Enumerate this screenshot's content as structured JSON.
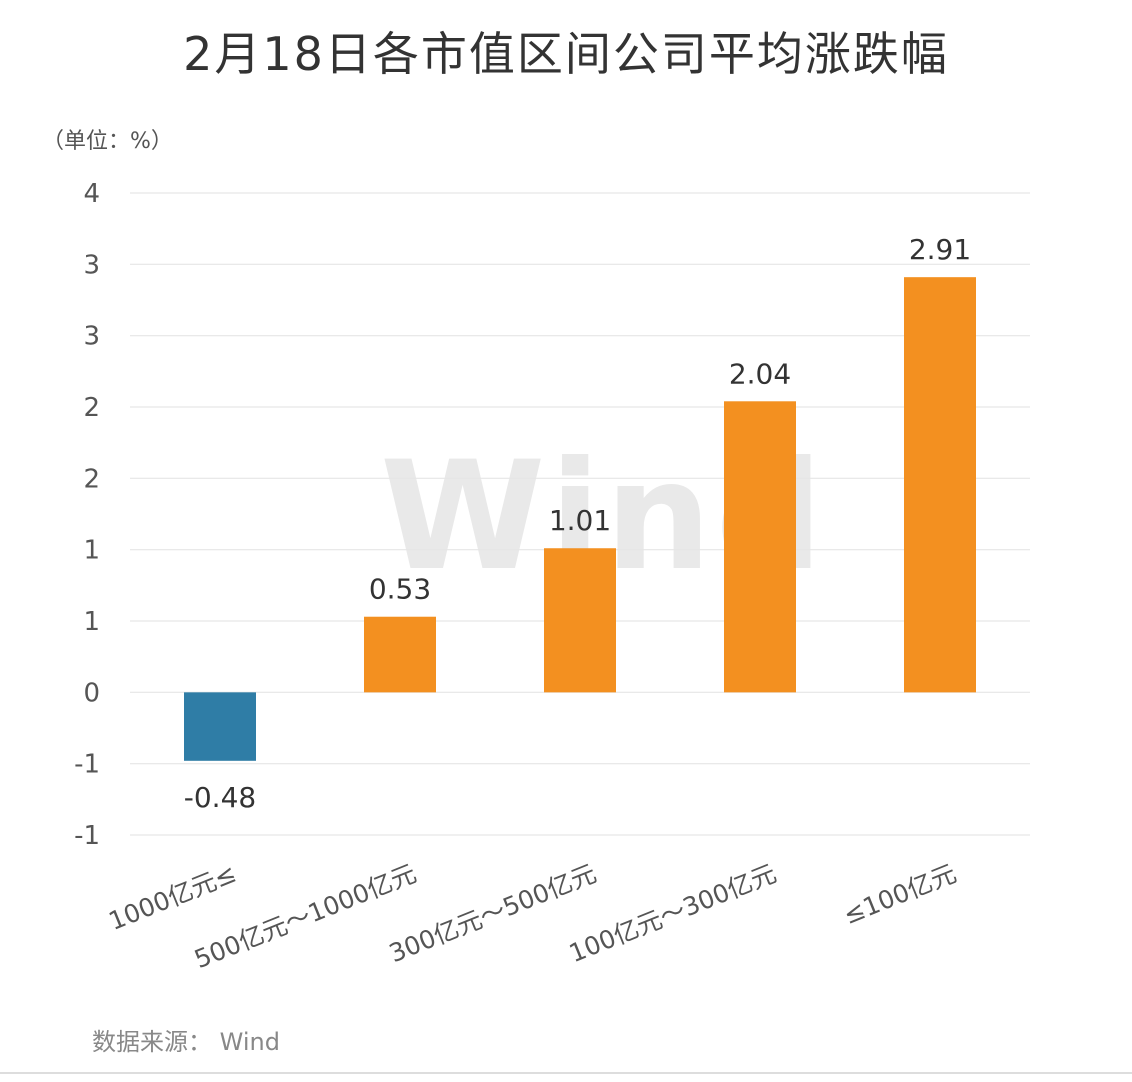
{
  "title": "2月18日各市值区间公司平均涨跌幅",
  "unit_label": "（单位：%）",
  "source": "数据来源： Wind",
  "watermark": "Wind",
  "colors": {
    "positive": "#f39020",
    "negative": "#2f7da6",
    "grid": "#e6e6e6",
    "text": "#333333",
    "axis_text": "#555555"
  },
  "chart_data": {
    "type": "bar",
    "categories": [
      "1000亿元≤",
      "500亿元～1000亿元",
      "300亿元～500亿元",
      "100亿元～300亿元",
      "≤100亿元"
    ],
    "values": [
      -0.48,
      0.53,
      1.01,
      2.04,
      2.91
    ],
    "data_labels": [
      "-0.48",
      "0.53",
      "1.01",
      "2.04",
      "2.91"
    ],
    "ytick_labels": [
      "4",
      "3",
      "3",
      "2",
      "2",
      "1",
      "1",
      "0",
      "-1",
      "-1"
    ],
    "ytick_values": [
      3.5,
      3.0,
      2.5,
      2.0,
      1.5,
      1.0,
      0.5,
      0,
      -0.5,
      -1.0
    ],
    "ylim": [
      -1.0,
      3.5
    ],
    "xlabel": "",
    "ylabel": "",
    "grid": true,
    "legend": "none"
  }
}
